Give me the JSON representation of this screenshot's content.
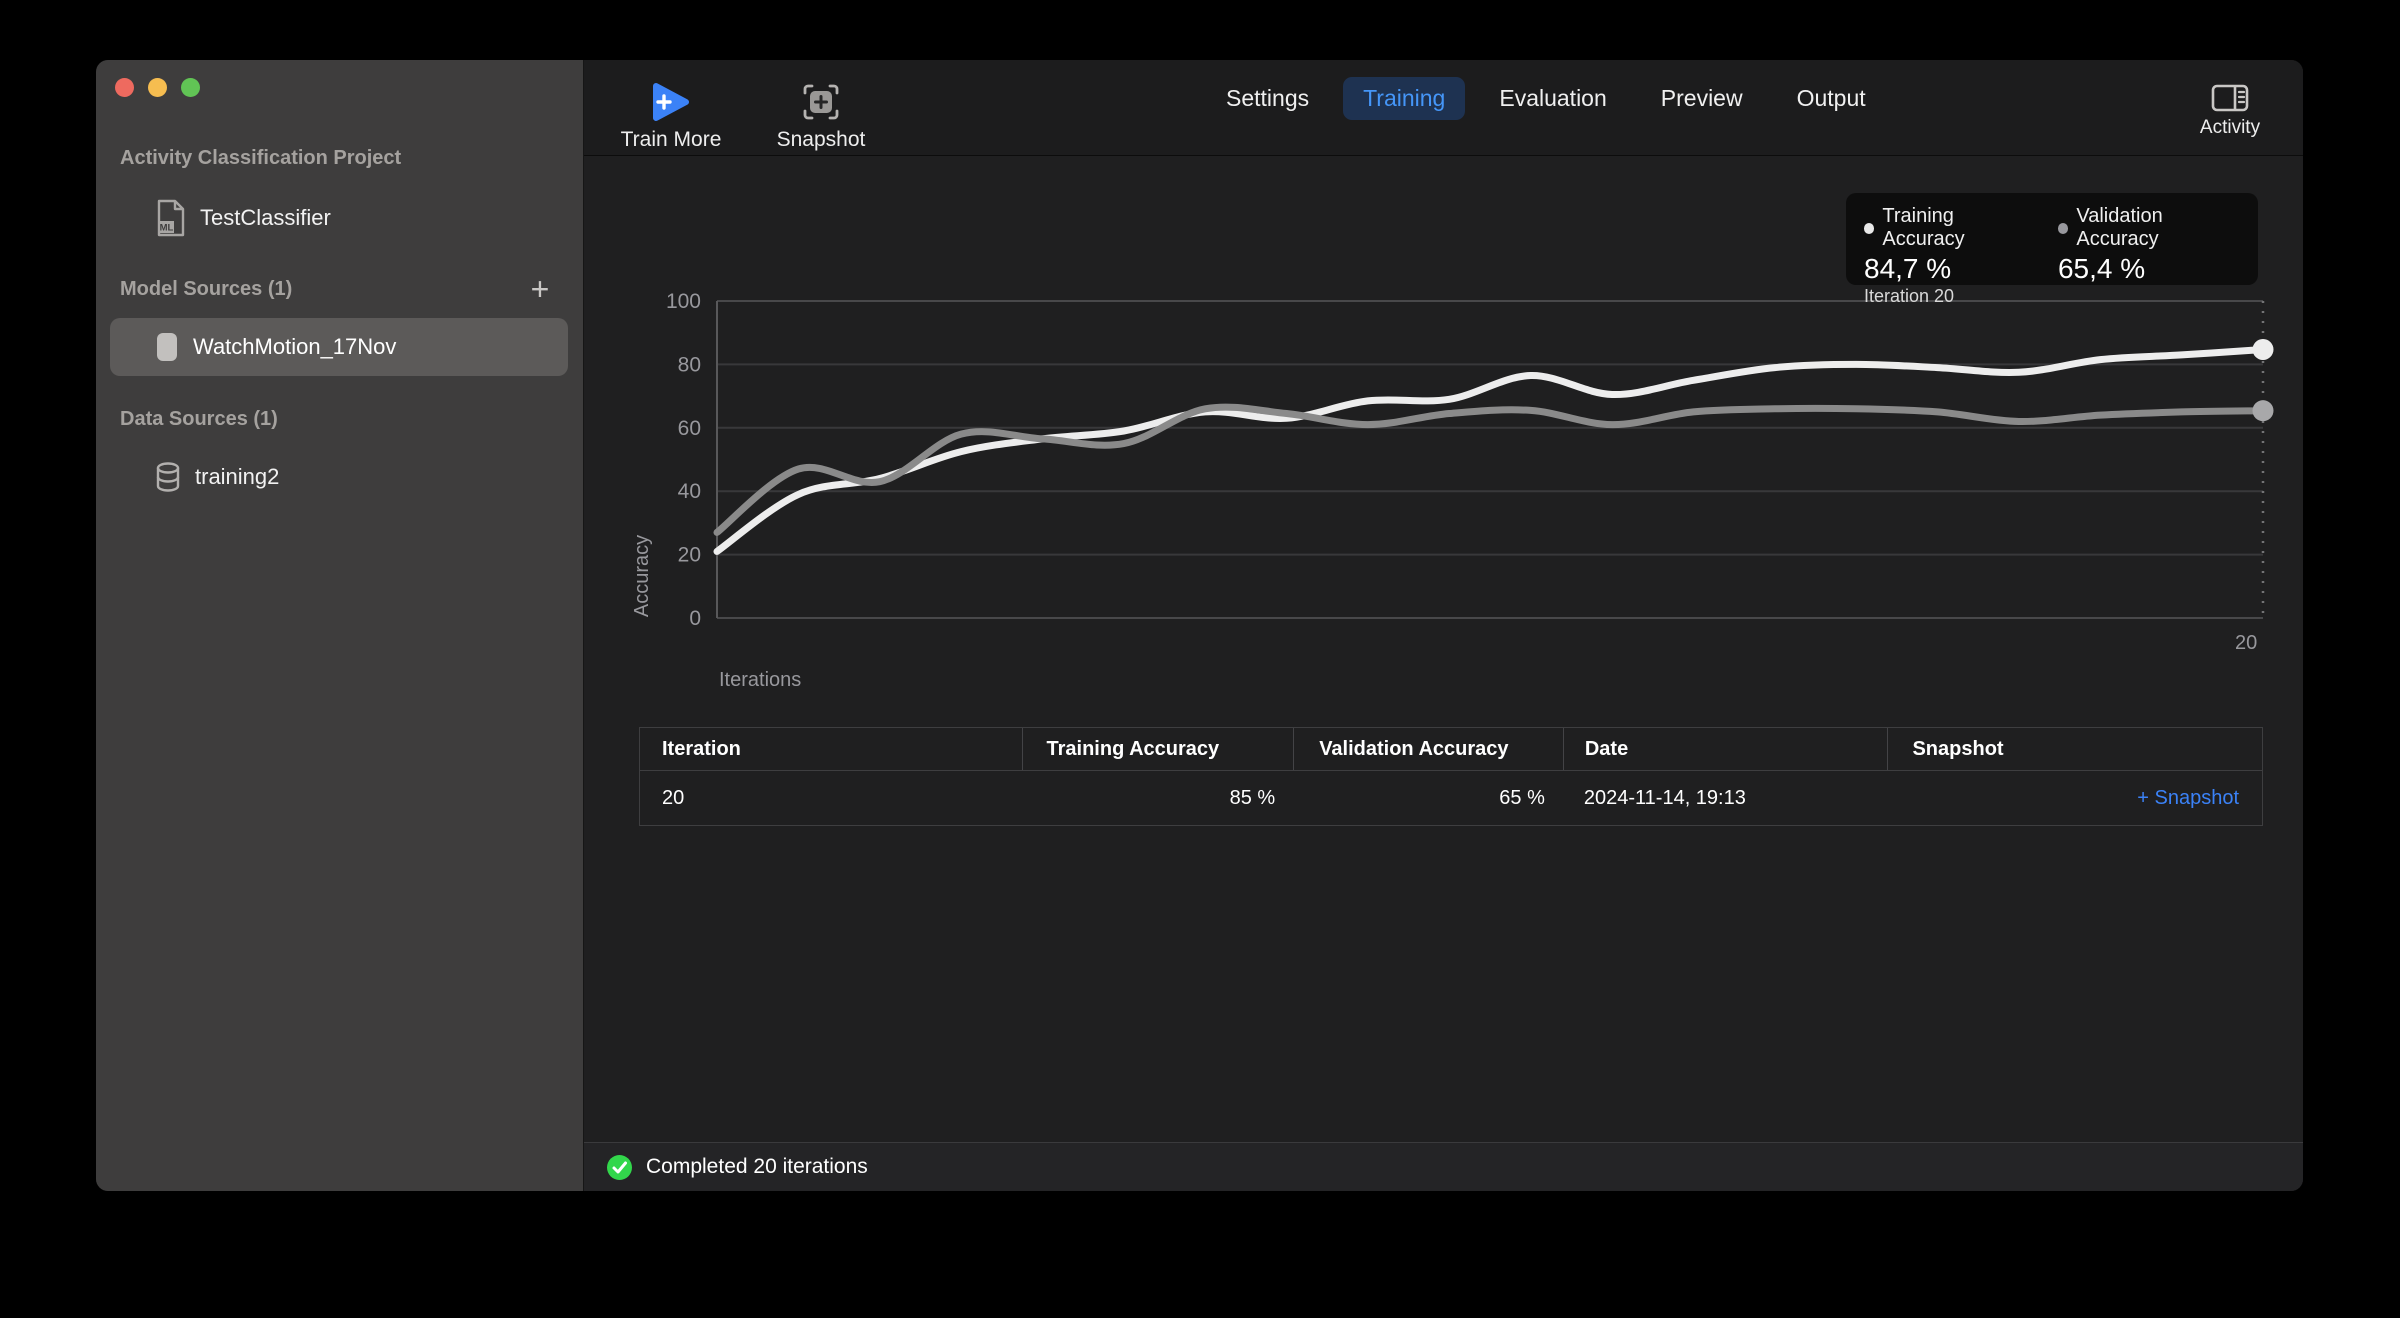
{
  "sidebar": {
    "project_type_label": "Activity Classification Project",
    "project_name": "TestClassifier",
    "model_sources_label": "Model Sources (1)",
    "model_source_selected": "WatchMotion_17Nov",
    "data_sources_label": "Data Sources (1)",
    "data_source_name": "training2",
    "add_button": "+"
  },
  "toolbar": {
    "train_more_label": "Train More",
    "snapshot_label": "Snapshot",
    "tabs": [
      {
        "label": "Settings",
        "active": false
      },
      {
        "label": "Training",
        "active": true
      },
      {
        "label": "Evaluation",
        "active": false
      },
      {
        "label": "Preview",
        "active": false
      },
      {
        "label": "Output",
        "active": false
      }
    ],
    "activity_label": "Activity"
  },
  "legend": {
    "training_label": "Training Accuracy",
    "training_value": "84,7 %",
    "training_iteration": "Iteration 20",
    "validation_label": "Validation Accuracy",
    "validation_value": "65,4 %"
  },
  "chart_data": {
    "type": "line",
    "x": [
      1,
      2,
      3,
      4,
      5,
      6,
      7,
      8,
      9,
      10,
      11,
      12,
      13,
      14,
      15,
      16,
      17,
      18,
      19,
      20
    ],
    "series": [
      {
        "name": "Training Accuracy",
        "color": "#ededed",
        "values": [
          21,
          39,
          44,
          52.5,
          56.5,
          59,
          65,
          63,
          68.5,
          69,
          76.5,
          70.5,
          75,
          79,
          80,
          79,
          77.5,
          81.5,
          83,
          84.7
        ]
      },
      {
        "name": "Validation Accuracy",
        "color": "#8a8a8a",
        "values": [
          27,
          47,
          43,
          58,
          56.5,
          55,
          66,
          64.5,
          61,
          64.5,
          65.5,
          61,
          65,
          66,
          66,
          65,
          62,
          64,
          65,
          65.4
        ]
      }
    ],
    "title": "",
    "xlabel": "Iterations",
    "ylabel": "Accuracy",
    "ylim": [
      0,
      100
    ],
    "yticks": [
      0,
      20,
      40,
      60,
      80,
      100
    ],
    "x_end_label": "20",
    "grid": true,
    "legend_position": "top-right"
  },
  "table": {
    "columns": [
      "Iteration",
      "Training Accuracy",
      "Validation Accuracy",
      "Date",
      "Snapshot"
    ],
    "rows": [
      [
        "20",
        "85 %",
        "65 %",
        "2024-11-14, 19:13",
        "+ Snapshot"
      ]
    ]
  },
  "statusbar": {
    "message": "Completed 20 iterations"
  },
  "colors": {
    "accent_blue": "#3b82f7",
    "tab_active_bg": "#1e3251",
    "tab_active_text": "#4596f8",
    "training_line": "#ededed",
    "validation_line": "#8a8a8a",
    "legend_training_dot": "#e8e8e8",
    "legend_validation_dot": "#98989d",
    "traffic_red": "#ee6a5f",
    "traffic_yellow": "#f6bd50",
    "traffic_green": "#61c455",
    "status_green": "#32d74b",
    "gridline": "#38383a",
    "axis_text": "#98989d"
  }
}
